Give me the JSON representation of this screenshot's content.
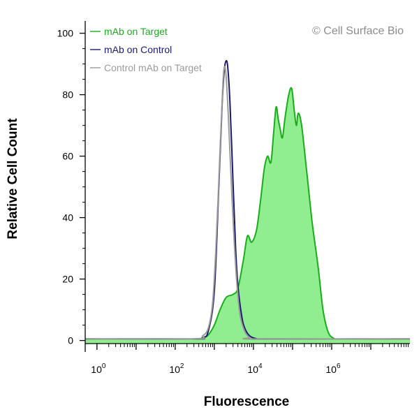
{
  "chart_data": {
    "type": "area",
    "title": "",
    "xlabel": "Fluorescence",
    "ylabel": "Relative Cell Count",
    "x_scale": "log",
    "xlim": [
      0.5,
      100000000
    ],
    "ylim": [
      -1,
      104
    ],
    "x_ticks": [
      {
        "base": "10",
        "exp": "0",
        "value": 1
      },
      {
        "base": "10",
        "exp": "2",
        "value": 100
      },
      {
        "base": "10",
        "exp": "4",
        "value": 10000
      },
      {
        "base": "10",
        "exp": "6",
        "value": 1000000
      }
    ],
    "y_ticks": [
      "0",
      "20",
      "40",
      "60",
      "80",
      "100"
    ],
    "copyright": "© Cell Surface Bio",
    "legend_position": "top-left",
    "series": [
      {
        "name": "mAb on Target",
        "color": "#1aad1a",
        "fill": "#90ee90",
        "filled": true,
        "points": [
          [
            0.5,
            0.5
          ],
          [
            100,
            0.5
          ],
          [
            300,
            0.5
          ],
          [
            500,
            0.8
          ],
          [
            700,
            1.8
          ],
          [
            1000,
            5
          ],
          [
            1400,
            10
          ],
          [
            2000,
            14
          ],
          [
            3000,
            15
          ],
          [
            4000,
            17
          ],
          [
            5500,
            26
          ],
          [
            7000,
            34
          ],
          [
            9000,
            32
          ],
          [
            12000,
            36
          ],
          [
            15000,
            45
          ],
          [
            19000,
            56
          ],
          [
            23000,
            60
          ],
          [
            28000,
            58
          ],
          [
            33000,
            68
          ],
          [
            38000,
            76
          ],
          [
            43000,
            72
          ],
          [
            48000,
            69
          ],
          [
            55000,
            66
          ],
          [
            65000,
            73
          ],
          [
            80000,
            80
          ],
          [
            95000,
            82
          ],
          [
            110000,
            75
          ],
          [
            125000,
            70
          ],
          [
            140000,
            74
          ],
          [
            170000,
            70
          ],
          [
            230000,
            55
          ],
          [
            320000,
            38
          ],
          [
            450000,
            24
          ],
          [
            600000,
            10
          ],
          [
            800000,
            3
          ],
          [
            1100000,
            0.8
          ],
          [
            2000000,
            0.5
          ],
          [
            100000000,
            0.5
          ]
        ]
      },
      {
        "name": "mAb on Control",
        "color": "#191970",
        "filled": false,
        "points": [
          [
            0.5,
            0.5
          ],
          [
            300,
            0.5
          ],
          [
            500,
            1
          ],
          [
            700,
            3
          ],
          [
            1000,
            16
          ],
          [
            1300,
            50
          ],
          [
            1600,
            78
          ],
          [
            1800,
            88
          ],
          [
            2000,
            91
          ],
          [
            2200,
            89
          ],
          [
            2500,
            78
          ],
          [
            3000,
            52
          ],
          [
            3500,
            30
          ],
          [
            4000,
            18
          ],
          [
            5000,
            8
          ],
          [
            6000,
            4
          ],
          [
            8000,
            1.5
          ],
          [
            12000,
            0.6
          ],
          [
            20000,
            0.5
          ],
          [
            100000000,
            0.5
          ]
        ]
      },
      {
        "name": "Control mAb on Target",
        "color": "#9a9a9a",
        "filled": false,
        "points": [
          [
            0.5,
            0.5
          ],
          [
            300,
            0.5
          ],
          [
            500,
            1.5
          ],
          [
            700,
            4
          ],
          [
            900,
            12
          ],
          [
            1100,
            30
          ],
          [
            1400,
            62
          ],
          [
            1650,
            83
          ],
          [
            1800,
            89
          ],
          [
            2000,
            86
          ],
          [
            2300,
            72
          ],
          [
            2700,
            52
          ],
          [
            3200,
            33
          ],
          [
            3800,
            18
          ],
          [
            4600,
            8
          ],
          [
            6000,
            3
          ],
          [
            8000,
            1
          ],
          [
            12000,
            0.5
          ],
          [
            100000000,
            0.5
          ]
        ]
      }
    ]
  }
}
